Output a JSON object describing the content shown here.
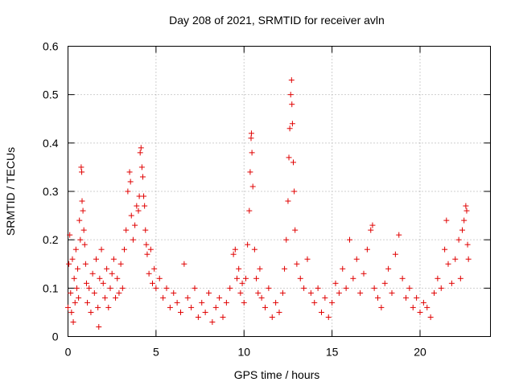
{
  "chart_data": {
    "type": "scatter",
    "title": "Day 208 of 2021, SRMTID for receiver avln",
    "xlabel": "GPS time / hours",
    "ylabel": "SRMTID / TECUs",
    "xlim": [
      0,
      24
    ],
    "ylim": [
      0,
      0.6
    ],
    "xticks": [
      0,
      5,
      10,
      15,
      20
    ],
    "yticks": [
      0,
      0.1,
      0.2,
      0.3,
      0.4,
      0.5,
      0.6
    ],
    "xtick_labels": [
      "0",
      "5",
      "10",
      "15",
      "20"
    ],
    "ytick_labels": [
      "0",
      "0.1",
      "0.2",
      "0.3",
      "0.4",
      "0.5",
      "0.6"
    ],
    "grid": true,
    "marker": "+",
    "color": "#e00000",
    "series": [
      {
        "name": "SRMTID",
        "points": [
          [
            0.0,
            0.06
          ],
          [
            0.05,
            0.15
          ],
          [
            0.1,
            0.21
          ],
          [
            0.15,
            0.09
          ],
          [
            0.2,
            0.05
          ],
          [
            0.25,
            0.16
          ],
          [
            0.3,
            0.03
          ],
          [
            0.35,
            0.12
          ],
          [
            0.4,
            0.07
          ],
          [
            0.45,
            0.18
          ],
          [
            0.5,
            0.1
          ],
          [
            0.55,
            0.14
          ],
          [
            0.6,
            0.08
          ],
          [
            0.65,
            0.24
          ],
          [
            0.7,
            0.2
          ],
          [
            0.75,
            0.35
          ],
          [
            0.78,
            0.34
          ],
          [
            0.8,
            0.28
          ],
          [
            0.85,
            0.26
          ],
          [
            0.9,
            0.22
          ],
          [
            0.95,
            0.19
          ],
          [
            1.0,
            0.15
          ],
          [
            1.05,
            0.11
          ],
          [
            1.1,
            0.07
          ],
          [
            1.2,
            0.1
          ],
          [
            1.3,
            0.05
          ],
          [
            1.4,
            0.13
          ],
          [
            1.5,
            0.09
          ],
          [
            1.6,
            0.16
          ],
          [
            1.7,
            0.06
          ],
          [
            1.75,
            0.02
          ],
          [
            1.8,
            0.12
          ],
          [
            1.9,
            0.18
          ],
          [
            2.0,
            0.11
          ],
          [
            2.1,
            0.08
          ],
          [
            2.2,
            0.14
          ],
          [
            2.3,
            0.06
          ],
          [
            2.4,
            0.1
          ],
          [
            2.5,
            0.13
          ],
          [
            2.6,
            0.16
          ],
          [
            2.7,
            0.08
          ],
          [
            2.8,
            0.12
          ],
          [
            2.9,
            0.09
          ],
          [
            3.0,
            0.15
          ],
          [
            3.1,
            0.1
          ],
          [
            3.2,
            0.18
          ],
          [
            3.3,
            0.22
          ],
          [
            3.4,
            0.3
          ],
          [
            3.5,
            0.34
          ],
          [
            3.55,
            0.32
          ],
          [
            3.6,
            0.25
          ],
          [
            3.7,
            0.2
          ],
          [
            3.8,
            0.23
          ],
          [
            3.9,
            0.27
          ],
          [
            4.0,
            0.26
          ],
          [
            4.05,
            0.29
          ],
          [
            4.1,
            0.38
          ],
          [
            4.15,
            0.39
          ],
          [
            4.2,
            0.35
          ],
          [
            4.25,
            0.33
          ],
          [
            4.3,
            0.29
          ],
          [
            4.35,
            0.27
          ],
          [
            4.4,
            0.22
          ],
          [
            4.45,
            0.19
          ],
          [
            4.5,
            0.17
          ],
          [
            4.6,
            0.13
          ],
          [
            4.7,
            0.18
          ],
          [
            4.8,
            0.11
          ],
          [
            4.9,
            0.14
          ],
          [
            5.0,
            0.1
          ],
          [
            5.2,
            0.12
          ],
          [
            5.4,
            0.08
          ],
          [
            5.6,
            0.1
          ],
          [
            5.8,
            0.06
          ],
          [
            6.0,
            0.09
          ],
          [
            6.2,
            0.07
          ],
          [
            6.4,
            0.05
          ],
          [
            6.6,
            0.15
          ],
          [
            6.8,
            0.08
          ],
          [
            7.0,
            0.06
          ],
          [
            7.2,
            0.1
          ],
          [
            7.4,
            0.04
          ],
          [
            7.6,
            0.07
          ],
          [
            7.8,
            0.05
          ],
          [
            8.0,
            0.09
          ],
          [
            8.2,
            0.03
          ],
          [
            8.4,
            0.06
          ],
          [
            8.6,
            0.08
          ],
          [
            8.8,
            0.04
          ],
          [
            9.0,
            0.07
          ],
          [
            9.2,
            0.1
          ],
          [
            9.4,
            0.17
          ],
          [
            9.5,
            0.18
          ],
          [
            9.6,
            0.12
          ],
          [
            9.7,
            0.14
          ],
          [
            9.8,
            0.09
          ],
          [
            9.9,
            0.11
          ],
          [
            10.0,
            0.07
          ],
          [
            10.1,
            0.12
          ],
          [
            10.2,
            0.19
          ],
          [
            10.3,
            0.26
          ],
          [
            10.35,
            0.34
          ],
          [
            10.4,
            0.41
          ],
          [
            10.42,
            0.42
          ],
          [
            10.45,
            0.38
          ],
          [
            10.5,
            0.31
          ],
          [
            10.6,
            0.18
          ],
          [
            10.7,
            0.12
          ],
          [
            10.8,
            0.09
          ],
          [
            10.9,
            0.14
          ],
          [
            11.0,
            0.08
          ],
          [
            11.2,
            0.06
          ],
          [
            11.4,
            0.1
          ],
          [
            11.6,
            0.04
          ],
          [
            11.8,
            0.07
          ],
          [
            12.0,
            0.05
          ],
          [
            12.2,
            0.09
          ],
          [
            12.3,
            0.14
          ],
          [
            12.4,
            0.2
          ],
          [
            12.5,
            0.28
          ],
          [
            12.55,
            0.37
          ],
          [
            12.6,
            0.43
          ],
          [
            12.65,
            0.5
          ],
          [
            12.7,
            0.53
          ],
          [
            12.72,
            0.48
          ],
          [
            12.75,
            0.44
          ],
          [
            12.8,
            0.36
          ],
          [
            12.85,
            0.3
          ],
          [
            12.9,
            0.22
          ],
          [
            13.0,
            0.15
          ],
          [
            13.2,
            0.12
          ],
          [
            13.4,
            0.1
          ],
          [
            13.6,
            0.16
          ],
          [
            13.8,
            0.09
          ],
          [
            14.0,
            0.07
          ],
          [
            14.2,
            0.1
          ],
          [
            14.4,
            0.05
          ],
          [
            14.6,
            0.08
          ],
          [
            14.8,
            0.04
          ],
          [
            15.0,
            0.07
          ],
          [
            15.2,
            0.11
          ],
          [
            15.4,
            0.09
          ],
          [
            15.6,
            0.14
          ],
          [
            15.8,
            0.1
          ],
          [
            16.0,
            0.2
          ],
          [
            16.2,
            0.12
          ],
          [
            16.4,
            0.16
          ],
          [
            16.6,
            0.09
          ],
          [
            16.8,
            0.13
          ],
          [
            17.0,
            0.18
          ],
          [
            17.2,
            0.22
          ],
          [
            17.3,
            0.23
          ],
          [
            17.4,
            0.1
          ],
          [
            17.6,
            0.08
          ],
          [
            17.8,
            0.06
          ],
          [
            18.0,
            0.11
          ],
          [
            18.2,
            0.14
          ],
          [
            18.4,
            0.09
          ],
          [
            18.6,
            0.17
          ],
          [
            18.8,
            0.21
          ],
          [
            19.0,
            0.12
          ],
          [
            19.2,
            0.08
          ],
          [
            19.4,
            0.1
          ],
          [
            19.6,
            0.06
          ],
          [
            19.8,
            0.08
          ],
          [
            20.0,
            0.05
          ],
          [
            20.2,
            0.07
          ],
          [
            20.4,
            0.06
          ],
          [
            20.6,
            0.04
          ],
          [
            20.8,
            0.09
          ],
          [
            21.0,
            0.12
          ],
          [
            21.2,
            0.1
          ],
          [
            21.4,
            0.18
          ],
          [
            21.5,
            0.24
          ],
          [
            21.6,
            0.15
          ],
          [
            21.8,
            0.11
          ],
          [
            22.0,
            0.16
          ],
          [
            22.2,
            0.2
          ],
          [
            22.3,
            0.12
          ],
          [
            22.4,
            0.22
          ],
          [
            22.5,
            0.24
          ],
          [
            22.6,
            0.27
          ],
          [
            22.65,
            0.26
          ],
          [
            22.7,
            0.19
          ],
          [
            22.75,
            0.16
          ]
        ]
      }
    ]
  }
}
